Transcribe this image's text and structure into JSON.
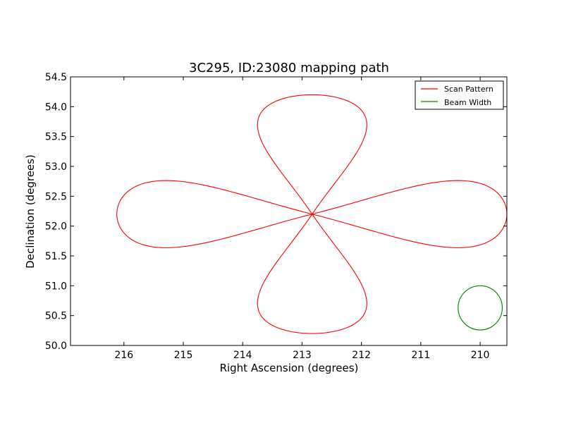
{
  "chart_data": {
    "type": "line",
    "title": "3C295, ID:23080 mapping path",
    "xlabel": "Right Ascension (degrees)",
    "ylabel": "Declination (degrees)",
    "xlim": [
      216.9,
      209.55
    ],
    "ylim": [
      50.0,
      54.5
    ],
    "x_reversed": true,
    "xticks": [
      216,
      215,
      214,
      213,
      212,
      211,
      210
    ],
    "xtick_labels": [
      "216",
      "215",
      "214",
      "213",
      "212",
      "211",
      "210"
    ],
    "yticks": [
      50.0,
      50.5,
      51.0,
      51.5,
      52.0,
      52.5,
      53.0,
      53.5,
      54.0,
      54.5
    ],
    "ytick_labels": [
      "50.0",
      "50.5",
      "51.0",
      "51.5",
      "52.0",
      "52.5",
      "53.0",
      "53.5",
      "54.0",
      "54.5"
    ],
    "grid": false,
    "legend_position": "top-right",
    "series": [
      {
        "name": "Scan Pattern",
        "color": "#ff0000",
        "center": [
          212.83,
          52.2
        ],
        "east_petal_ra": 216.12,
        "west_petal_ra": 209.55,
        "petal_half_width_dec": 0.55,
        "north_petal_dec": 54.2,
        "south_petal_dec": 50.2,
        "petal_half_width_ra": 0.9
      },
      {
        "name": "Beam Width",
        "color": "#008000",
        "center": [
          210.0,
          50.63
        ],
        "radius_dec": 0.37
      }
    ]
  }
}
